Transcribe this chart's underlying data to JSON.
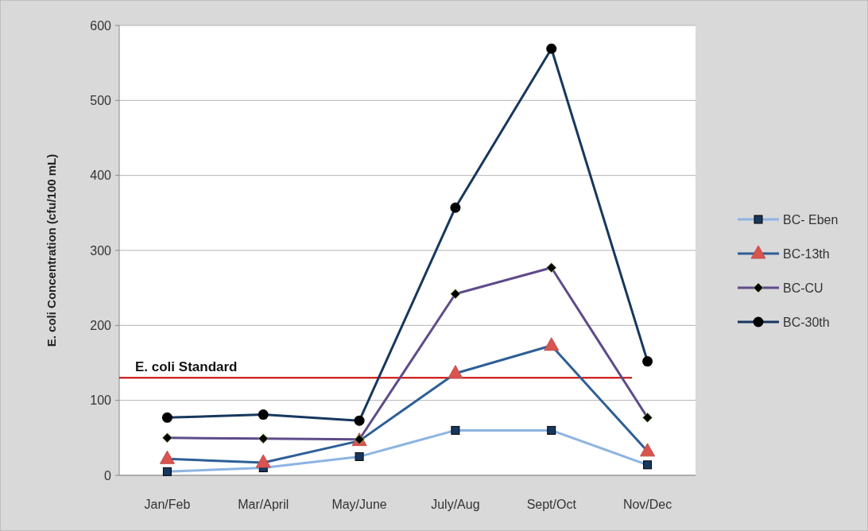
{
  "chart_data": {
    "type": "line",
    "ylabel": "E. coli Concentration (cfu/100 mL)",
    "categories": [
      "Jan/Feb",
      "Mar/April",
      "May/June",
      "July/Aug",
      "Sept/Oct",
      "Nov/Dec"
    ],
    "series": [
      {
        "name": "BC- Eben",
        "color": "#8db4e2",
        "marker": "square",
        "values": [
          5,
          10,
          25,
          60,
          60,
          14
        ]
      },
      {
        "name": "BC-13th",
        "color": "#2e5f96",
        "marker": "triangle",
        "values": [
          22,
          17,
          46,
          136,
          173,
          32
        ]
      },
      {
        "name": "BC-CU",
        "color": "#5f4b8b",
        "marker": "diamond",
        "values": [
          50,
          49,
          48,
          242,
          277,
          77
        ]
      },
      {
        "name": "BC-30th",
        "color": "#17375e",
        "marker": "circle",
        "values": [
          77,
          81,
          73,
          357,
          569,
          152
        ]
      }
    ],
    "ylim": [
      0,
      600
    ],
    "yticks": [
      0,
      100,
      200,
      300,
      400,
      500,
      600
    ],
    "grid": "y",
    "legend": "right",
    "ref_lines": [
      {
        "axis": "y",
        "value": 130,
        "label": "E. coli Standard",
        "color": "#cc0000"
      }
    ]
  }
}
